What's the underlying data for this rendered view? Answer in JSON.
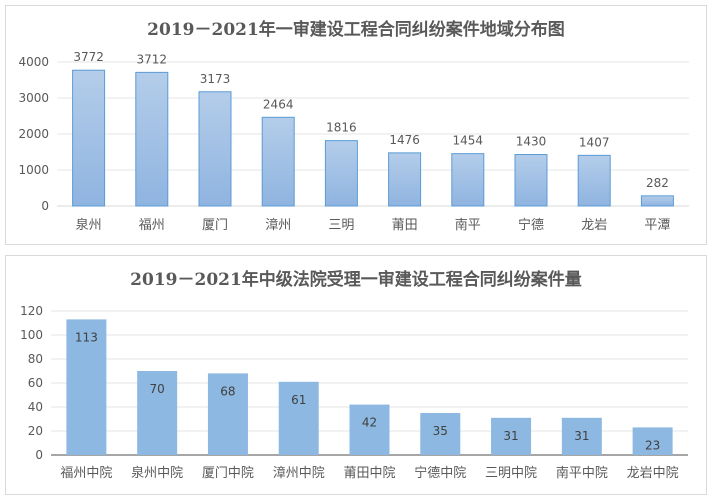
{
  "chart_data": [
    {
      "type": "bar",
      "title": "2019－2021年一审建设工程合同纠纷案件地域分布图",
      "categories": [
        "泉州",
        "福州",
        "厦门",
        "漳州",
        "三明",
        "莆田",
        "南平",
        "宁德",
        "龙岩",
        "平潭"
      ],
      "values": [
        3772,
        3712,
        3173,
        2464,
        1816,
        1476,
        1454,
        1430,
        1407,
        282
      ],
      "yticks": [
        0,
        1000,
        2000,
        3000,
        4000
      ],
      "ylim": [
        0,
        4000
      ],
      "grid": true,
      "data_labels": "outside-end",
      "bar_color": "#9dc3e6",
      "bar_border": "#5b9bd5"
    },
    {
      "type": "bar",
      "title": "2019－2021年中级法院受理一审建设工程合同纠纷案件量",
      "categories": [
        "福州中院",
        "泉州中院",
        "厦门中院",
        "漳州中院",
        "莆田中院",
        "宁德中院",
        "三明中院",
        "南平中院",
        "龙岩中院"
      ],
      "values": [
        113,
        70,
        68,
        61,
        42,
        35,
        31,
        31,
        23
      ],
      "yticks": [
        0,
        20,
        40,
        60,
        80,
        100,
        120
      ],
      "ylim": [
        0,
        120
      ],
      "grid": true,
      "data_labels": "inside-end",
      "bar_color": "#8db8e2"
    }
  ]
}
